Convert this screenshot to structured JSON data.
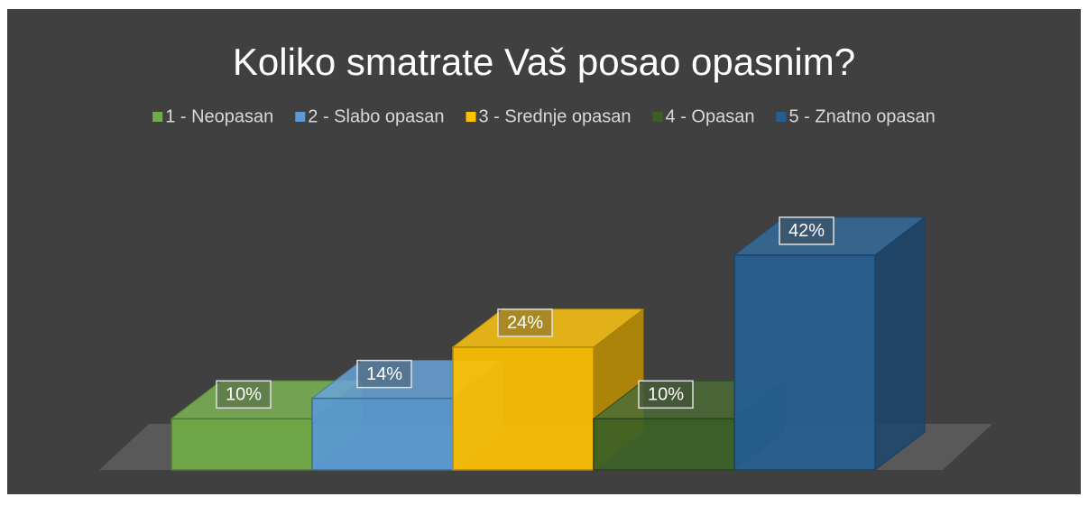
{
  "chart_data": {
    "type": "bar3d",
    "title": "Koliko smatrate Vaš posao opasnim?",
    "series": [
      {
        "name": "1 - Neopasan",
        "color": "#70ad47",
        "values": [
          10
        ],
        "value_labels": [
          "10%"
        ]
      },
      {
        "name": "2 - Slabo opasan",
        "color": "#5b9bd5",
        "values": [
          14
        ],
        "value_labels": [
          "14%"
        ]
      },
      {
        "name": "3 - Srednje opasan",
        "color": "#ffc000",
        "values": [
          24
        ],
        "value_labels": [
          "24%"
        ]
      },
      {
        "name": "4 - Opasan",
        "color": "#3b5f25",
        "values": [
          10
        ],
        "value_labels": [
          "10%"
        ]
      },
      {
        "name": "5 - Znatno opasan",
        "color": "#255e91",
        "values": [
          42
        ],
        "value_labels": [
          "42%"
        ]
      }
    ],
    "legend": "top"
  }
}
